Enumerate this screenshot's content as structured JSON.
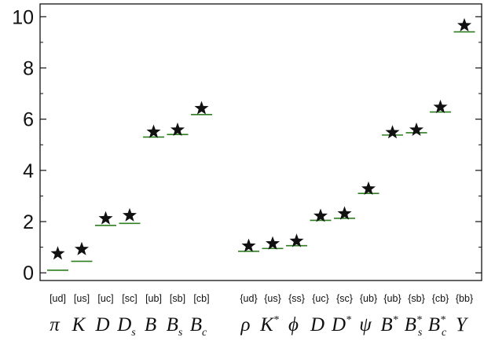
{
  "chart_data": {
    "type": "scatter",
    "title": "",
    "xlabel": "",
    "ylabel": "",
    "ylim": [
      -0.3,
      10.5
    ],
    "yticks": [
      "0",
      "2",
      "4",
      "6",
      "8",
      "10"
    ],
    "ytick_values": [
      0,
      2,
      4,
      6,
      8,
      10
    ],
    "grid": false,
    "marker_color": "#111111",
    "line_color": "#2e7d1f",
    "groups": [
      {
        "categories": [
          "[ud]",
          "[us]",
          "[uc]",
          "[sc]",
          "[ub]",
          "[sb]",
          "[cb]"
        ],
        "meson_labels": [
          "π",
          "K",
          "D",
          "D",
          "B",
          "B",
          "B"
        ],
        "meson_subscripts": [
          "",
          "",
          "",
          "s",
          "",
          "s",
          "c"
        ],
        "meson_superscripts": [
          "",
          "",
          "",
          "",
          "",
          "",
          ""
        ],
        "star_values": [
          0.75,
          0.92,
          2.12,
          2.24,
          5.5,
          5.58,
          6.42
        ],
        "line_values": [
          0.1,
          0.45,
          1.85,
          1.93,
          5.3,
          5.4,
          6.18
        ]
      },
      {
        "categories": [
          "{ud}",
          "{us}",
          "{ss}",
          "{uc}",
          "{sc}",
          "{ub}",
          "{ub}",
          "{sb}",
          "{cb}",
          "{bb}"
        ],
        "meson_labels": [
          "ρ",
          "K",
          "ϕ",
          "D",
          "D",
          "ψ",
          "B",
          "B",
          "B",
          "Υ"
        ],
        "meson_subscripts": [
          "",
          "",
          "",
          "",
          "",
          "",
          "",
          "s",
          "c",
          ""
        ],
        "meson_superscripts": [
          "",
          "*",
          "",
          "",
          "*",
          "",
          "*",
          "*",
          "*",
          ""
        ],
        "star_values": [
          1.05,
          1.14,
          1.24,
          2.22,
          2.31,
          3.28,
          5.48,
          5.58,
          6.47,
          9.66
        ],
        "line_values": [
          0.84,
          0.95,
          1.06,
          2.05,
          2.13,
          3.1,
          5.38,
          5.47,
          6.28,
          9.41
        ]
      }
    ]
  }
}
